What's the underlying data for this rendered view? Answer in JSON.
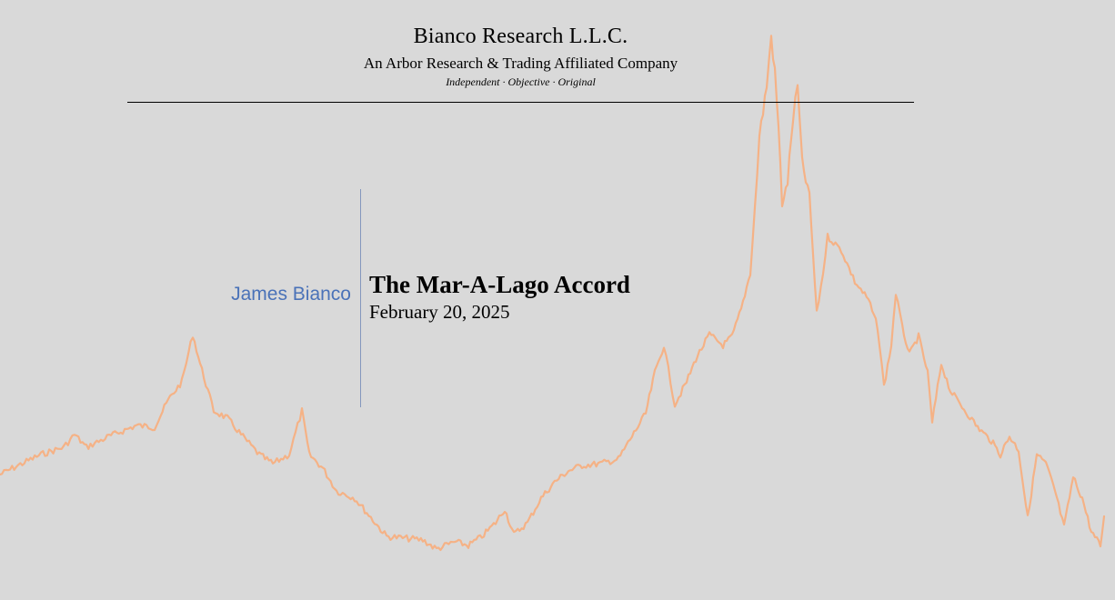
{
  "header": {
    "firm_name": "Bianco Research L.L.C.",
    "affiliate": "An Arbor Research & Trading Affiliated Company",
    "tagline": "Independent · Objective · Original"
  },
  "presenter": {
    "author": "James Bianco",
    "title": "The Mar-A-Lago Accord",
    "date": "February 20, 2025"
  },
  "background_chart": {
    "type": "line",
    "color": "#f5b286"
  }
}
